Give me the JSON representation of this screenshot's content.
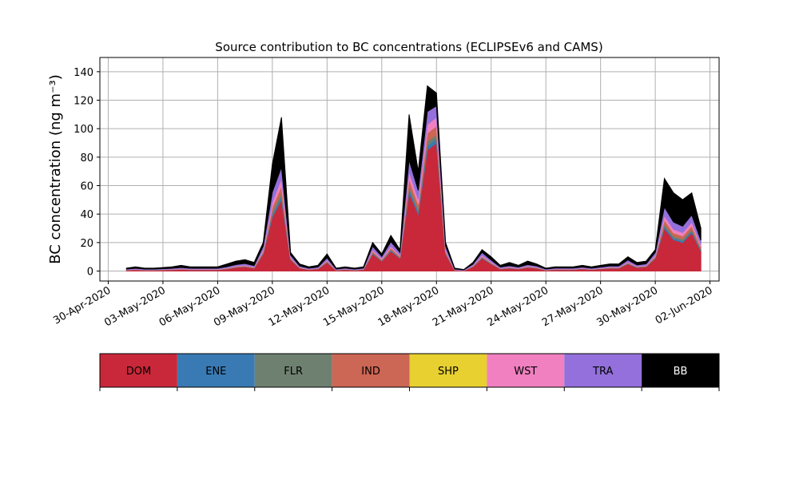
{
  "chart_data": {
    "type": "stacked_area",
    "title": "Source contribution to BC concentrations (ECLIPSEv6 and CAMS)",
    "y_label": "BC concentration (ng m⁻³)",
    "grid": true,
    "legend_position": "bottom",
    "ylim": [
      -7,
      150
    ],
    "yticks": [
      0,
      20,
      40,
      60,
      80,
      100,
      120,
      140
    ],
    "xlim": [
      "2020-04-29T13:00Z",
      "2020-06-02T12:00Z"
    ],
    "xticks": [
      {
        "value": "2020-04-30T00:00Z",
        "label": "30-Apr-2020"
      },
      {
        "value": "2020-05-03T00:00Z",
        "label": "03-May-2020"
      },
      {
        "value": "2020-05-06T00:00Z",
        "label": "06-May-2020"
      },
      {
        "value": "2020-05-09T00:00Z",
        "label": "09-May-2020"
      },
      {
        "value": "2020-05-12T00:00Z",
        "label": "12-May-2020"
      },
      {
        "value": "2020-05-15T00:00Z",
        "label": "15-May-2020"
      },
      {
        "value": "2020-05-18T00:00Z",
        "label": "18-May-2020"
      },
      {
        "value": "2020-05-21T00:00Z",
        "label": "21-May-2020"
      },
      {
        "value": "2020-05-24T00:00Z",
        "label": "24-May-2020"
      },
      {
        "value": "2020-05-27T00:00Z",
        "label": "27-May-2020"
      },
      {
        "value": "2020-05-30T00:00Z",
        "label": "30-May-2020"
      },
      {
        "value": "2020-06-02T00:00Z",
        "label": "02-Jun-2020"
      }
    ],
    "x": [
      "2020-05-01T00:00Z",
      "2020-05-01T12:00Z",
      "2020-05-02T00:00Z",
      "2020-05-02T12:00Z",
      "2020-05-03T00:00Z",
      "2020-05-03T12:00Z",
      "2020-05-04T00:00Z",
      "2020-05-04T12:00Z",
      "2020-05-05T00:00Z",
      "2020-05-05T12:00Z",
      "2020-05-06T00:00Z",
      "2020-05-06T12:00Z",
      "2020-05-07T00:00Z",
      "2020-05-07T12:00Z",
      "2020-05-08T00:00Z",
      "2020-05-08T12:00Z",
      "2020-05-09T00:00Z",
      "2020-05-09T12:00Z",
      "2020-05-10T00:00Z",
      "2020-05-10T12:00Z",
      "2020-05-11T00:00Z",
      "2020-05-11T12:00Z",
      "2020-05-12T00:00Z",
      "2020-05-12T12:00Z",
      "2020-05-13T00:00Z",
      "2020-05-13T12:00Z",
      "2020-05-14T00:00Z",
      "2020-05-14T12:00Z",
      "2020-05-15T00:00Z",
      "2020-05-15T12:00Z",
      "2020-05-16T00:00Z",
      "2020-05-16T12:00Z",
      "2020-05-17T00:00Z",
      "2020-05-17T12:00Z",
      "2020-05-18T00:00Z",
      "2020-05-18T12:00Z",
      "2020-05-19T00:00Z",
      "2020-05-19T12:00Z",
      "2020-05-20T00:00Z",
      "2020-05-20T12:00Z",
      "2020-05-21T00:00Z",
      "2020-05-21T12:00Z",
      "2020-05-22T00:00Z",
      "2020-05-22T12:00Z",
      "2020-05-23T00:00Z",
      "2020-05-23T12:00Z",
      "2020-05-24T00:00Z",
      "2020-05-24T12:00Z",
      "2020-05-25T00:00Z",
      "2020-05-25T12:00Z",
      "2020-05-26T00:00Z",
      "2020-05-26T12:00Z",
      "2020-05-27T00:00Z",
      "2020-05-27T12:00Z",
      "2020-05-28T00:00Z",
      "2020-05-28T12:00Z",
      "2020-05-29T00:00Z",
      "2020-05-29T12:00Z",
      "2020-05-30T00:00Z",
      "2020-05-30T12:00Z",
      "2020-05-31T00:00Z",
      "2020-05-31T12:00Z",
      "2020-06-01T00:00Z",
      "2020-06-01T12:00Z"
    ],
    "series": [
      {
        "name": "DOM",
        "color": "#c8283a",
        "values": [
          0.6,
          0.9,
          0.6,
          0.6,
          0.8,
          0.9,
          1.2,
          0.9,
          0.9,
          0.9,
          0.9,
          1.5,
          2.5,
          3,
          2,
          12,
          38,
          50,
          8,
          2,
          1,
          1.5,
          6,
          0.6,
          1,
          0.6,
          1,
          12,
          7,
          14,
          9,
          55,
          40,
          85,
          90,
          12,
          0.6,
          0.3,
          3,
          9,
          5,
          1.5,
          2,
          1.5,
          2.5,
          2,
          0.6,
          1,
          1,
          1,
          1.5,
          1,
          1.5,
          2,
          2,
          5,
          2.5,
          3,
          9,
          30,
          22,
          20,
          27,
          14
        ]
      },
      {
        "name": "ENE",
        "color": "#3a7ab4",
        "values": [
          0.05,
          0.08,
          0.05,
          0.05,
          0.06,
          0.08,
          0.1,
          0.08,
          0.08,
          0.08,
          0.08,
          0.12,
          0.18,
          0.2,
          0.15,
          0.5,
          1.8,
          2.5,
          0.3,
          0.12,
          0.08,
          0.1,
          0.3,
          0.05,
          0.08,
          0.05,
          0.08,
          0.5,
          0.3,
          0.6,
          0.35,
          2.5,
          1.8,
          3,
          3,
          0.5,
          0.05,
          0.03,
          0.15,
          0.35,
          0.25,
          0.1,
          0.15,
          0.1,
          0.18,
          0.12,
          0.05,
          0.08,
          0.08,
          0.08,
          0.1,
          0.08,
          0.1,
          0.12,
          0.12,
          0.25,
          0.15,
          0.18,
          0.35,
          1.5,
          1.2,
          1.2,
          1.2,
          0.8
        ]
      },
      {
        "name": "FLR",
        "color": "#6e8070",
        "values": [
          0.05,
          0.08,
          0.05,
          0.05,
          0.06,
          0.08,
          0.1,
          0.08,
          0.08,
          0.08,
          0.08,
          0.12,
          0.18,
          0.2,
          0.15,
          0.5,
          1.8,
          2.5,
          0.3,
          0.12,
          0.08,
          0.1,
          0.3,
          0.05,
          0.08,
          0.05,
          0.08,
          0.5,
          0.3,
          0.6,
          0.35,
          2.5,
          1.8,
          3,
          3,
          0.5,
          0.05,
          0.03,
          0.15,
          0.35,
          0.25,
          0.1,
          0.15,
          0.1,
          0.18,
          0.12,
          0.05,
          0.08,
          0.08,
          0.08,
          0.1,
          0.08,
          0.1,
          0.12,
          0.12,
          0.25,
          0.15,
          0.18,
          0.35,
          1.5,
          1.2,
          1.2,
          1.2,
          0.8
        ]
      },
      {
        "name": "IND",
        "color": "#cc6655",
        "values": [
          0.1,
          0.15,
          0.1,
          0.1,
          0.12,
          0.15,
          0.2,
          0.15,
          0.15,
          0.15,
          0.15,
          0.25,
          0.35,
          0.4,
          0.3,
          1,
          3.5,
          5,
          0.6,
          0.25,
          0.15,
          0.2,
          0.6,
          0.1,
          0.15,
          0.1,
          0.15,
          1,
          0.6,
          1.2,
          0.7,
          5,
          3.5,
          6,
          6,
          1,
          0.1,
          0.05,
          0.3,
          0.7,
          0.5,
          0.2,
          0.3,
          0.2,
          0.35,
          0.25,
          0.1,
          0.15,
          0.15,
          0.15,
          0.2,
          0.15,
          0.2,
          0.25,
          0.25,
          0.5,
          0.3,
          0.35,
          0.7,
          3,
          2.5,
          2.3,
          2.5,
          1.5
        ]
      },
      {
        "name": "SHP",
        "color": "#e8d030",
        "values": [
          0.02,
          0.02,
          0.02,
          0.02,
          0.02,
          0.02,
          0.02,
          0.02,
          0.02,
          0.02,
          0.02,
          0.02,
          0.02,
          0.02,
          0.02,
          0.02,
          0.02,
          0.02,
          0.02,
          0.02,
          0.02,
          0.02,
          0.02,
          0.02,
          0.02,
          0.02,
          0.02,
          0.02,
          0.02,
          0.02,
          0.02,
          0.02,
          0.02,
          0.02,
          0.02,
          0.02,
          0.02,
          0.02,
          0.02,
          0.02,
          0.02,
          0.02,
          0.02,
          0.02,
          0.02,
          0.02,
          0.02,
          0.02,
          0.02,
          0.02,
          0.02,
          0.02,
          0.02,
          0.02,
          0.02,
          0.02,
          0.02,
          0.02,
          0.02,
          0.02,
          0.02,
          0.02,
          0.02,
          0.02
        ]
      },
      {
        "name": "WST",
        "color": "#f080c0",
        "values": [
          0.1,
          0.15,
          0.1,
          0.1,
          0.12,
          0.15,
          0.2,
          0.15,
          0.15,
          0.15,
          0.15,
          0.25,
          0.35,
          0.4,
          0.3,
          1,
          3.5,
          5,
          0.6,
          0.25,
          0.15,
          0.2,
          0.6,
          0.1,
          0.15,
          0.1,
          0.15,
          1,
          0.6,
          1.2,
          0.7,
          5,
          3.5,
          6,
          6,
          1,
          0.1,
          0.05,
          0.3,
          0.7,
          0.5,
          0.2,
          0.3,
          0.2,
          0.35,
          0.25,
          0.1,
          0.15,
          0.15,
          0.15,
          0.2,
          0.15,
          0.2,
          0.25,
          0.25,
          0.5,
          0.3,
          0.35,
          0.7,
          3,
          2.5,
          2.3,
          2.5,
          1.5
        ]
      },
      {
        "name": "TRA",
        "color": "#9370db",
        "values": [
          0.5,
          0.6,
          0.5,
          0.5,
          0.5,
          0.6,
          0.7,
          0.6,
          0.6,
          0.6,
          0.6,
          0.8,
          1,
          1.1,
          0.9,
          2.5,
          7,
          8,
          1.5,
          0.8,
          0.6,
          0.7,
          1.5,
          0.5,
          0.6,
          0.5,
          0.6,
          2.5,
          1.5,
          3,
          2,
          8,
          6,
          9,
          8,
          2.5,
          0.5,
          0.4,
          0.9,
          2,
          1.3,
          0.7,
          0.9,
          0.7,
          1,
          0.8,
          0.5,
          0.6,
          0.6,
          0.6,
          0.7,
          0.6,
          0.7,
          0.8,
          0.8,
          1.3,
          0.9,
          1,
          2,
          6,
          5,
          4.5,
          5,
          3
        ]
      },
      {
        "name": "BB",
        "color": "#000000",
        "values": [
          0.6,
          1,
          0.6,
          0.6,
          0.8,
          1,
          1.5,
          1,
          1,
          1,
          1,
          1.9,
          2.4,
          2.7,
          2.2,
          2.5,
          19.5,
          35,
          1.7,
          1.4,
          0.9,
          1.2,
          2.7,
          0.6,
          0.9,
          0.6,
          0.9,
          2.5,
          1.7,
          4.4,
          1.9,
          32,
          13.5,
          18,
          9,
          2.5,
          0.6,
          0.15,
          1.2,
          1.9,
          2.2,
          1.2,
          2.2,
          1.2,
          2.4,
          1.4,
          0.6,
          0.9,
          0.9,
          0.9,
          1.2,
          0.9,
          1.2,
          1.4,
          1.4,
          2.2,
          1.7,
          1.9,
          1.9,
          20,
          20.5,
          18.6,
          15.5,
          8.5
        ]
      }
    ]
  }
}
